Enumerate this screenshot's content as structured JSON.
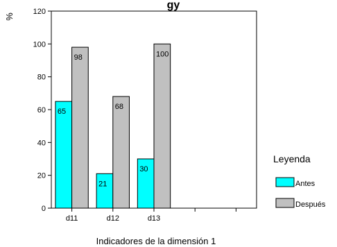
{
  "chart_data": {
    "type": "bar",
    "title": "",
    "title_partial": "gy",
    "ylabel": "%",
    "xlabel": "Indicadores de la dimensión 1",
    "categories": [
      "d11",
      "d12",
      "d13"
    ],
    "extra_empty_categories": 2,
    "ylim": [
      0,
      120
    ],
    "yticks": [
      0,
      20,
      40,
      60,
      80,
      100,
      120
    ],
    "grid": false,
    "legend": {
      "title": "Leyenda",
      "placement": "right"
    },
    "series": [
      {
        "name": "Antes",
        "color": "#00ffff",
        "values": [
          65,
          21,
          30
        ]
      },
      {
        "name": "Después",
        "color": "#c0c0c0",
        "values": [
          98,
          68,
          100
        ]
      }
    ],
    "data_labels": [
      [
        "65",
        "21",
        "30"
      ],
      [
        "98",
        "68",
        "100"
      ]
    ]
  }
}
